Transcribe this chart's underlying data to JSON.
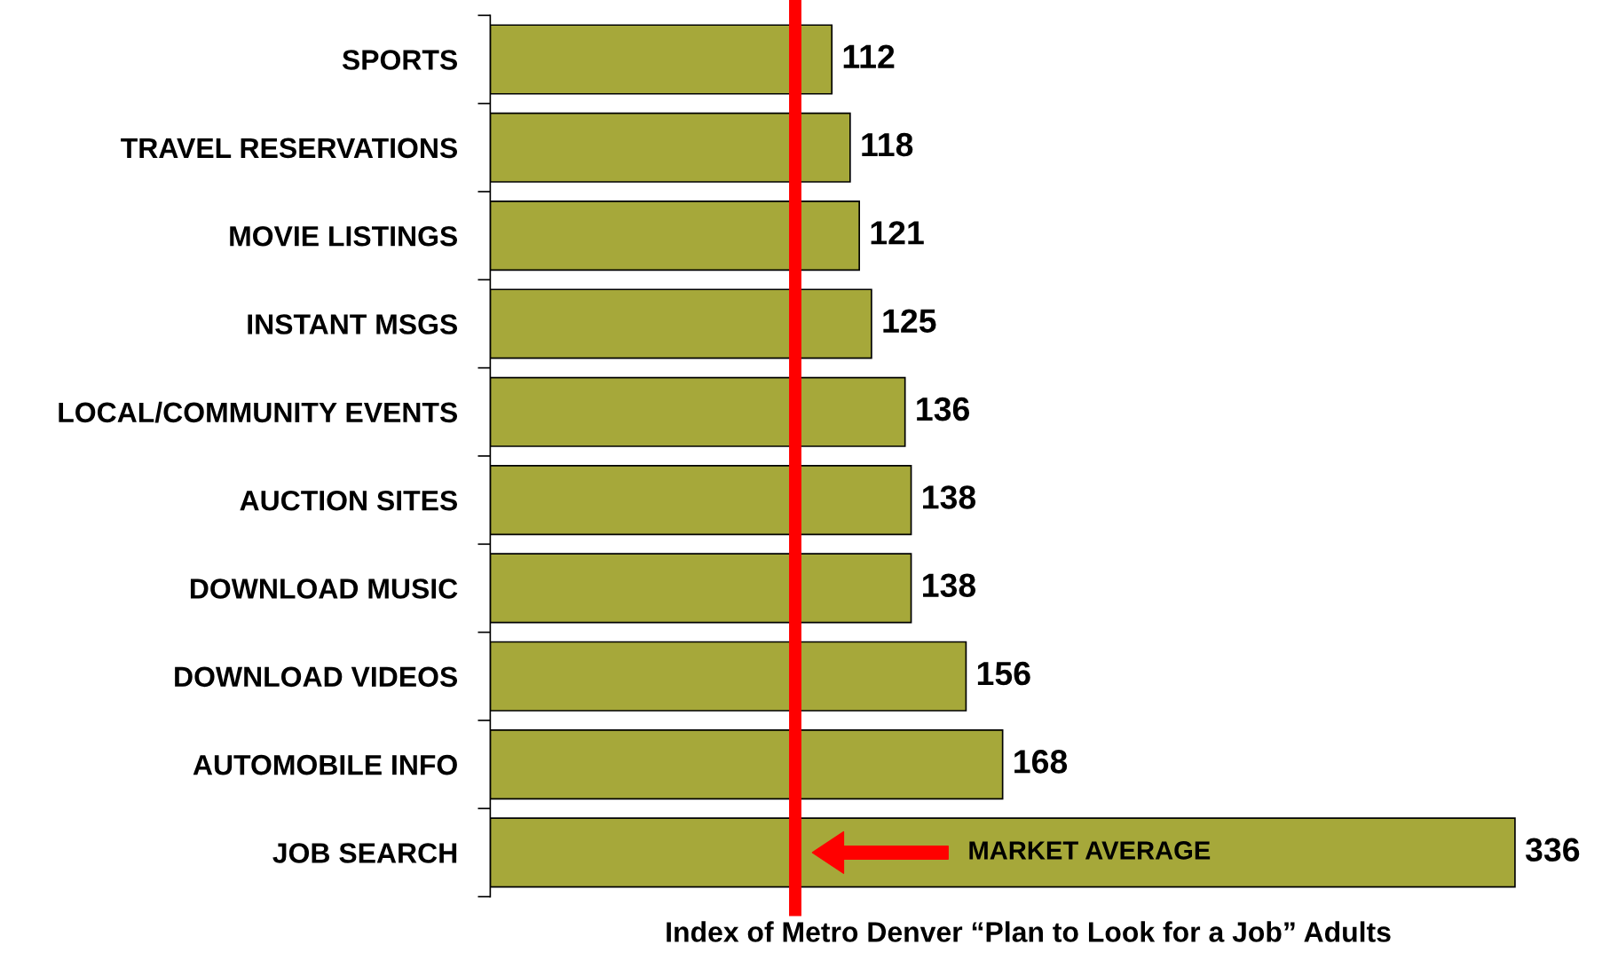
{
  "chart_data": {
    "type": "bar",
    "orientation": "horizontal",
    "xlabel": "Index of Metro Denver “Plan to Look for a Job” Adults",
    "categories": [
      "SPORTS",
      "TRAVEL RESERVATIONS",
      "MOVIE LISTINGS",
      "INSTANT MSGS",
      "LOCAL/COMMUNITY EVENTS",
      "AUCTION SITES",
      "DOWNLOAD MUSIC",
      "DOWNLOAD VIDEOS",
      "AUTOMOBILE INFO",
      "JOB SEARCH"
    ],
    "values": [
      112,
      118,
      121,
      125,
      136,
      138,
      138,
      156,
      168,
      336
    ],
    "color": "#a6a83a",
    "tick_labels": "y",
    "data_labels": true,
    "grid": false,
    "legend": false,
    "ref_lines": [
      {
        "axis": "x",
        "value": 100,
        "color": "#ff0000"
      }
    ],
    "annotations": [
      "MARKET AVERAGE"
    ]
  }
}
